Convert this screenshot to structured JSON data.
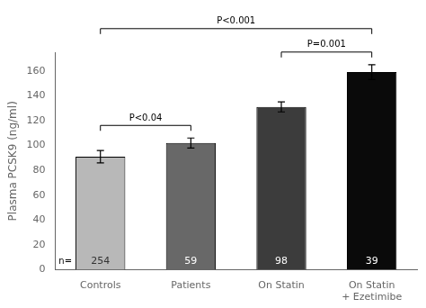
{
  "chart_data": {
    "type": "bar",
    "categories": [
      "Controls",
      "Patients",
      "On Statin",
      "On Statin\n+ Ezetimibe"
    ],
    "values": [
      91,
      102,
      131,
      159
    ],
    "errors": [
      5,
      4,
      4,
      6
    ],
    "colors": [
      "#b8b8b8",
      "#686868",
      "#3c3c3c",
      "#0a0a0a"
    ],
    "ylabel": "Plasma PCSK9 (ng/ml)",
    "ylim": [
      0,
      175
    ],
    "yticks": [
      0,
      20,
      40,
      60,
      80,
      100,
      120,
      140,
      160
    ],
    "grid": false,
    "n_labels": {
      "prefix": "n=",
      "labels": [
        "254",
        "59",
        "98",
        "39"
      ],
      "colors": [
        "#333333",
        "#ffffff",
        "#ffffff",
        "#ffffff"
      ]
    },
    "brackets": [
      {
        "from": "Controls",
        "to": "Patients",
        "label": "P<0.04"
      },
      {
        "from": "Controls",
        "to": "On Statin\n+ Ezetimibe",
        "label": "P<0.001"
      },
      {
        "from": "On Statin",
        "to": "On Statin\n+ Ezetimibe",
        "label": "P=0.001"
      }
    ]
  }
}
